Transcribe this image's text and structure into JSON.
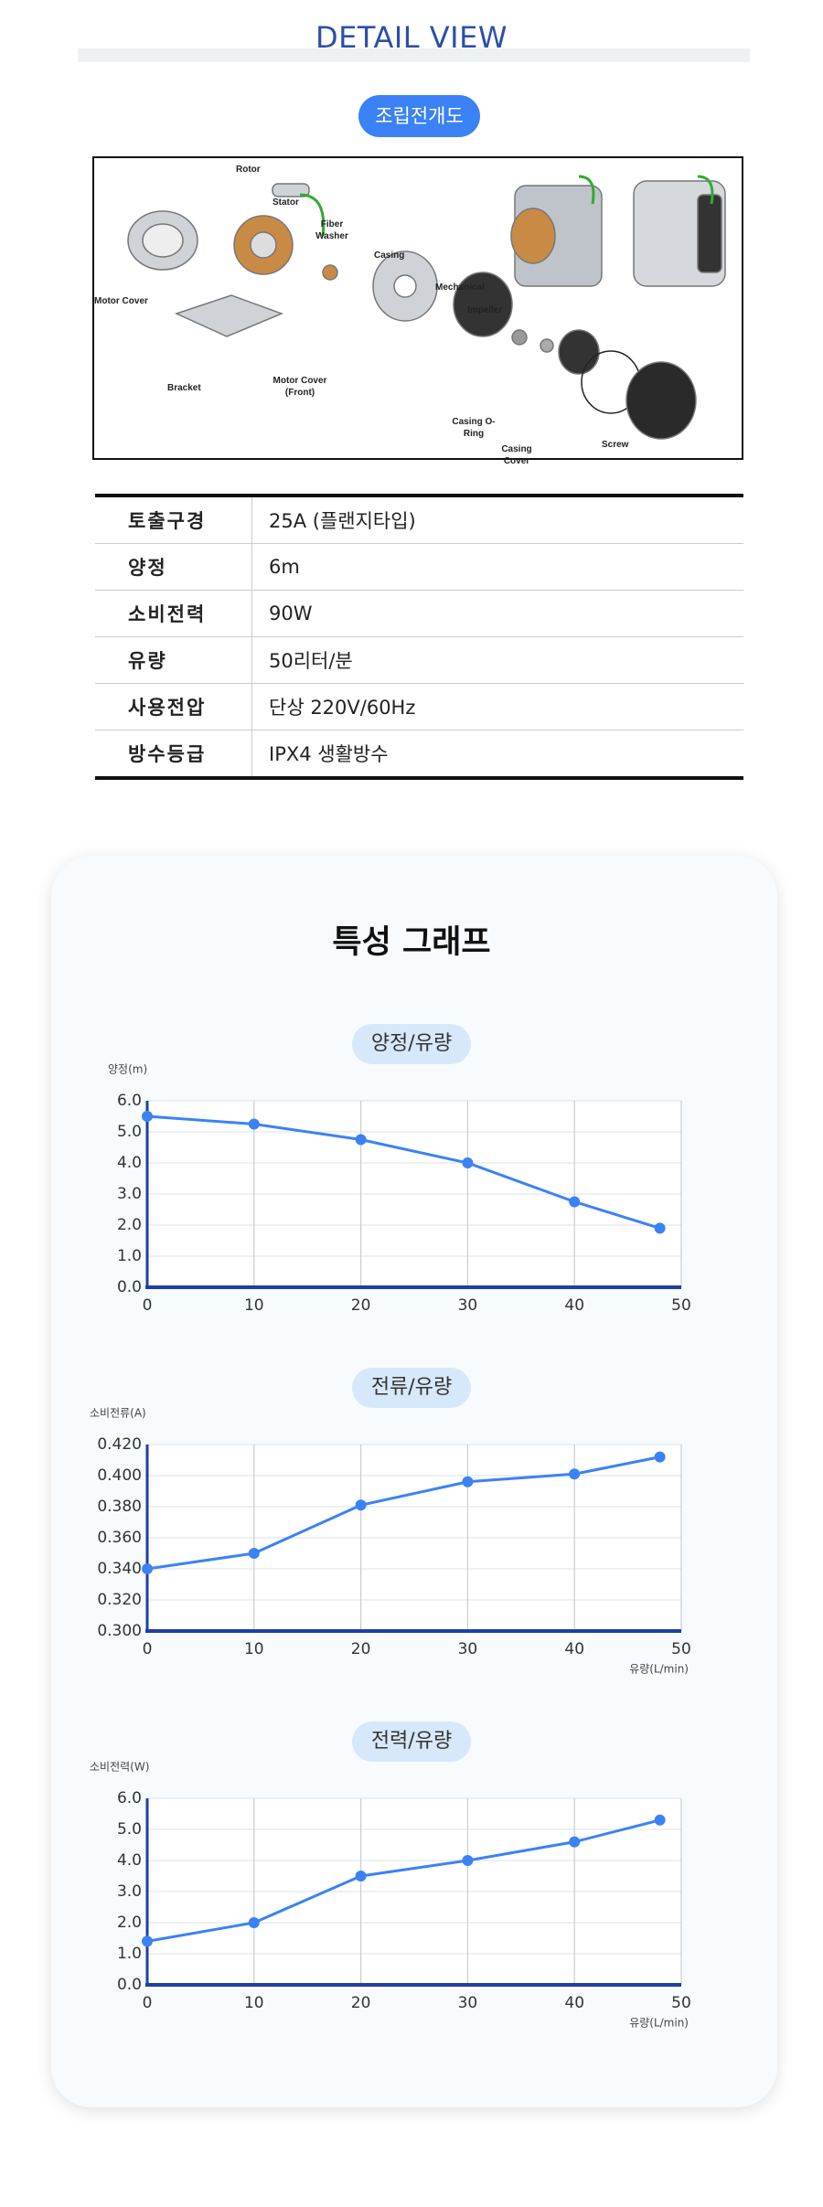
{
  "header": {
    "title": "DETAIL VIEW",
    "badge": "조립전개도"
  },
  "diagram": {
    "labels": [
      "Rotor",
      "Stator",
      "Fiber Washer",
      "Motor Cover",
      "Bracket",
      "Motor Cover (Front)",
      "Casing",
      "Mechanical",
      "Impeller",
      "Casing  O-Ring",
      "Casing Cover",
      "Screw"
    ]
  },
  "spec_table": {
    "rows": [
      [
        "토출구경",
        "25A (플랜지타입)"
      ],
      [
        "양정",
        "6m"
      ],
      [
        "소비전력",
        "90W"
      ],
      [
        "유량",
        "50리터/분"
      ],
      [
        "사용전압",
        "단상 220V/60Hz"
      ],
      [
        "방수등급",
        "IPX4 생활방수"
      ]
    ]
  },
  "graph_section": {
    "title": "특성 그래프"
  },
  "chart_data": [
    {
      "type": "line",
      "title": "양정/유량",
      "y_label": "양정(m)",
      "x": [
        0,
        10,
        20,
        30,
        40,
        48
      ],
      "xlim": [
        0,
        50
      ],
      "xticks": [
        0,
        10,
        20,
        30,
        40,
        50
      ],
      "series": [
        {
          "name": "양정",
          "color": "#3b82f6",
          "values": [
            5.5,
            5.25,
            4.75,
            4.0,
            2.75,
            1.9
          ]
        }
      ],
      "ylim": [
        0,
        6
      ],
      "yticks": [
        {
          "value": 0,
          "label": "0.0"
        },
        {
          "value": 1,
          "label": "1.0"
        },
        {
          "value": 2,
          "label": "2.0"
        },
        {
          "value": 3,
          "label": "3.0"
        },
        {
          "value": 4,
          "label": "4.0"
        },
        {
          "value": 5,
          "label": "5.0"
        },
        {
          "value": 6,
          "label": "6.0"
        }
      ],
      "grid": true
    },
    {
      "type": "line",
      "title": "전류/유량",
      "y_label": "소비전류(A)",
      "x_label": "유량(L/min)",
      "x": [
        0,
        10,
        20,
        30,
        40,
        48
      ],
      "xlim": [
        0,
        50
      ],
      "xticks": [
        0,
        10,
        20,
        30,
        40,
        50
      ],
      "series": [
        {
          "name": "소비전류",
          "color": "#3b82f6",
          "values": [
            0.34,
            0.35,
            0.381,
            0.396,
            0.401,
            0.412
          ]
        }
      ],
      "ylim": [
        0.3,
        0.42
      ],
      "yticks": [
        {
          "value": 0.3,
          "label": "0.300"
        },
        {
          "value": 0.32,
          "label": "0.320"
        },
        {
          "value": 0.34,
          "label": "0.340"
        },
        {
          "value": 0.36,
          "label": "0.360"
        },
        {
          "value": 0.38,
          "label": "0.380"
        },
        {
          "value": 0.4,
          "label": "0.400"
        },
        {
          "value": 0.42,
          "label": "0.420"
        }
      ],
      "grid": true
    },
    {
      "type": "line",
      "title": "전력/유량",
      "y_label": "소비전력(W)",
      "x_label": "유량(L/min)",
      "x": [
        0,
        10,
        20,
        30,
        40,
        48
      ],
      "xlim": [
        0,
        50
      ],
      "xticks": [
        0,
        10,
        20,
        30,
        40,
        50
      ],
      "series": [
        {
          "name": "소비전력",
          "color": "#3b82f6",
          "values": [
            1.4,
            2.0,
            3.5,
            4.0,
            4.6,
            5.3
          ]
        }
      ],
      "ylim": [
        0,
        6
      ],
      "yticks": [
        {
          "value": 0,
          "label": "0.0"
        },
        {
          "value": 1,
          "label": "1.0"
        },
        {
          "value": 2,
          "label": "2.0"
        },
        {
          "value": 3,
          "label": "3.0"
        },
        {
          "value": 4,
          "label": "4.0"
        },
        {
          "value": 5,
          "label": "5.0"
        },
        {
          "value": 6,
          "label": "6.0"
        }
      ],
      "grid": true
    }
  ]
}
